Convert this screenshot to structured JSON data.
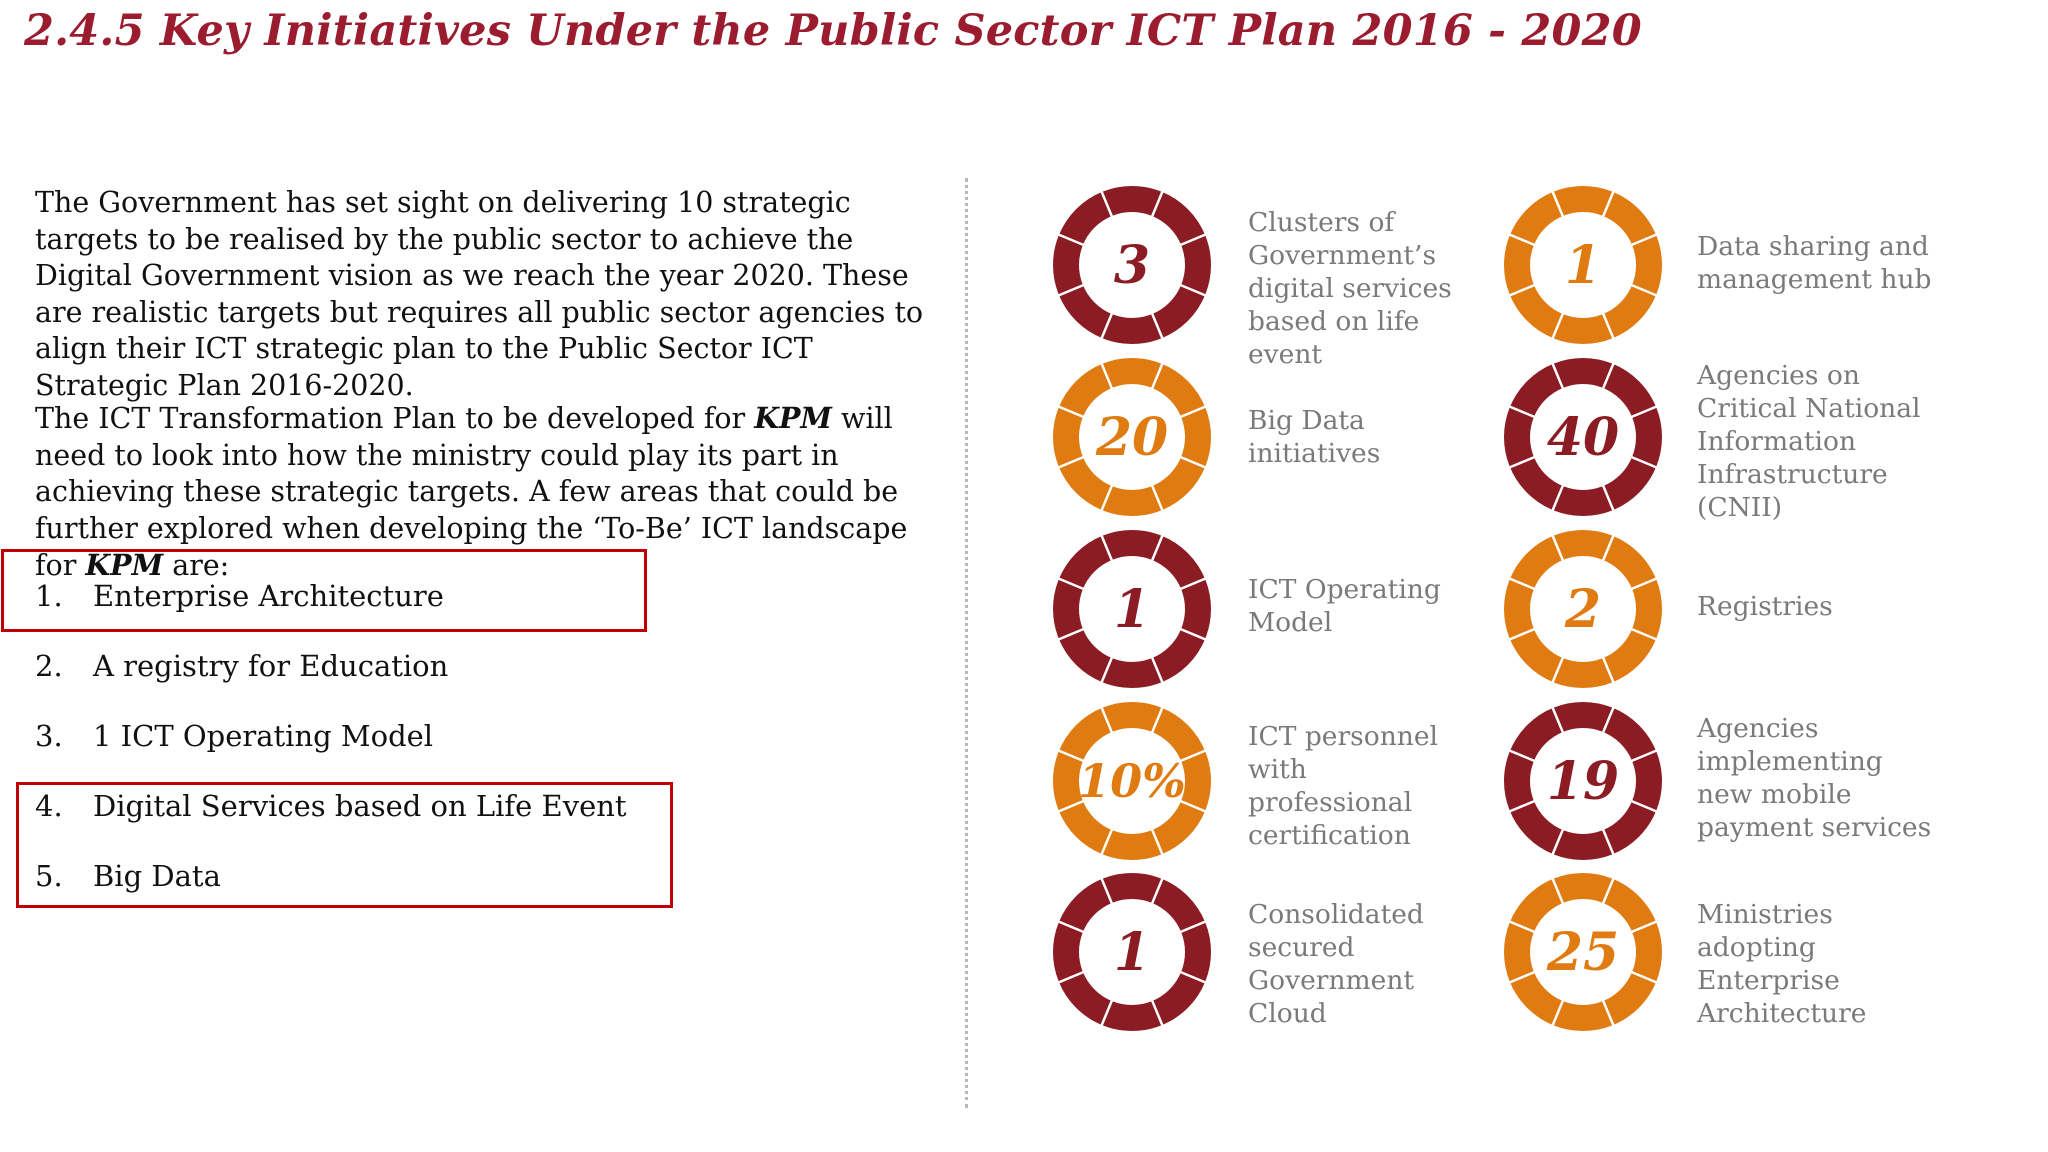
{
  "title": "2.4.5 Key Initiatives Under the Public Sector ICT Plan 2016 - 2020",
  "intro": {
    "para1": "The Government  has set sight on delivering 10 strategic targets to be realised by the public sector to achieve the Digital Government vision as we reach the year 2020. These are realistic targets but requires all public sector agencies to align their ICT strategic plan to the Public Sector ICT Strategic Plan 2016-2020.",
    "para2_a": "The ICT Transformation Plan to be developed for ",
    "para2_kpm1": "KPM",
    "para2_b": " will need to look into how the ministry could play its part in achieving these strategic targets.  A few areas that could be further explored when developing the ‘To-Be’ ICT landscape for ",
    "para2_kpm2": "KPM",
    "para2_c": " are:"
  },
  "list": [
    {
      "num": "1.",
      "text": "Enterprise Architecture"
    },
    {
      "num": "2.",
      "text": "A registry for Education"
    },
    {
      "num": "3.",
      "text": "1 ICT Operating Model"
    },
    {
      "num": "4.",
      "text": "Digital Services based on Life Event"
    },
    {
      "num": "5.",
      "text": "Big Data"
    }
  ],
  "colors": {
    "title": "#9b1b2f",
    "dark_red": "#8b1c24",
    "orange": "#e07b12",
    "highlight_box": "#c00000",
    "label_gray": "#7a7a7a"
  },
  "stats": [
    {
      "value": "3",
      "color": "dark_red",
      "label": "Clusters of Government’s digital services based on life event"
    },
    {
      "value": "1",
      "color": "orange",
      "label": "Data sharing and management hub"
    },
    {
      "value": "20",
      "color": "orange",
      "label": "Big Data initiatives"
    },
    {
      "value": "40",
      "color": "dark_red",
      "label": "Agencies on Critical National Information Infrastructure (CNII)"
    },
    {
      "value": "1",
      "color": "dark_red",
      "label": "ICT Operating Model"
    },
    {
      "value": "2",
      "color": "orange",
      "label": "Registries"
    },
    {
      "value": "10%",
      "color": "orange",
      "label": "ICT personnel with professional certification"
    },
    {
      "value": "19",
      "color": "dark_red",
      "label": "Agencies implementing new mobile payment services"
    },
    {
      "value": "1",
      "color": "dark_red",
      "label": "Consolidated secured Government Cloud"
    },
    {
      "value": "25",
      "color": "orange",
      "label": "Ministries adopting Enterprise Architecture"
    }
  ]
}
